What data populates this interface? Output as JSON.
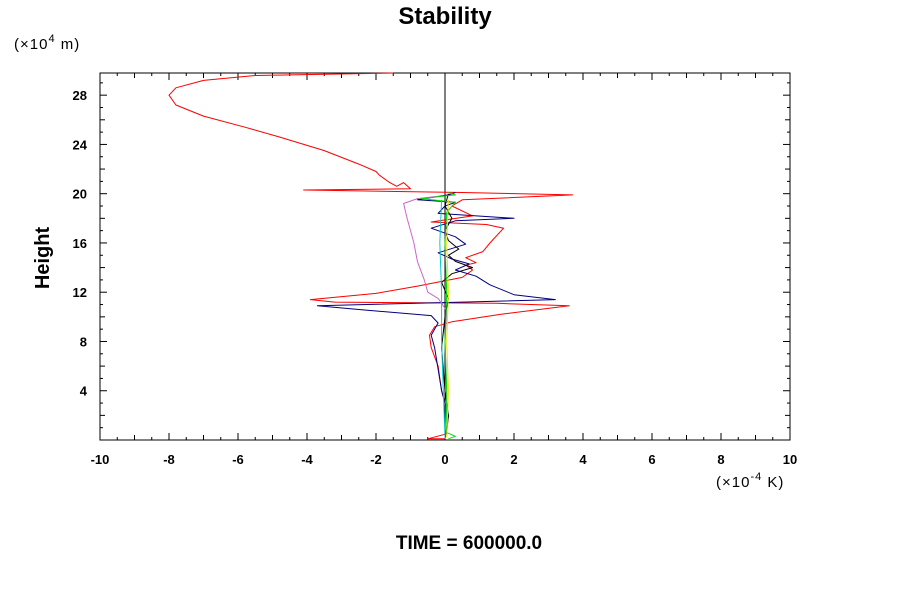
{
  "chart_data": {
    "type": "line",
    "title": "Stability",
    "xlabel": "",
    "ylabel": "Height",
    "x_unit_label": {
      "base": "(×10",
      "exp": "-4",
      "unit": " K)"
    },
    "y_unit_label": {
      "base": "(×10",
      "exp": "4",
      "unit": " m)"
    },
    "xlim": [
      -10,
      10
    ],
    "ylim": [
      0,
      29.8
    ],
    "x_ticks": [
      -10,
      -8,
      -6,
      -4,
      -2,
      0,
      2,
      4,
      6,
      8,
      10
    ],
    "x_tick_labels": [
      "-10",
      "-8",
      "-6",
      "-4",
      "-2",
      "0",
      "2",
      "4",
      "6",
      "8",
      "10"
    ],
    "y_ticks": [
      4,
      8,
      12,
      16,
      20,
      24,
      28
    ],
    "y_tick_labels": [
      "4",
      "8",
      "12",
      "16",
      "20",
      "24",
      "28"
    ],
    "grid": false,
    "footer": "TIME = 600000.0",
    "series": [
      {
        "color": "#ff0000",
        "points": [
          [
            0.0,
            0.1
          ],
          [
            -0.5,
            0.1
          ],
          [
            0.05,
            0.5
          ],
          [
            0.1,
            2.0
          ],
          [
            -0.1,
            4.0
          ],
          [
            -0.2,
            6.0
          ],
          [
            -0.4,
            7.5
          ],
          [
            -0.45,
            8.5
          ],
          [
            -0.3,
            9.2
          ],
          [
            0.2,
            9.6
          ],
          [
            1.6,
            10.2
          ],
          [
            3.6,
            10.9
          ],
          [
            1.5,
            11.1
          ],
          [
            -3.2,
            11.2
          ],
          [
            -3.9,
            11.4
          ],
          [
            -2.0,
            11.9
          ],
          [
            -0.8,
            12.5
          ],
          [
            0.5,
            13.2
          ],
          [
            0.8,
            13.8
          ],
          [
            0.6,
            14.2
          ],
          [
            0.9,
            14.4
          ],
          [
            0.6,
            14.8
          ],
          [
            1.1,
            15.3
          ],
          [
            1.3,
            16.0
          ],
          [
            1.7,
            17.2
          ],
          [
            1.2,
            17.5
          ],
          [
            -0.4,
            17.7
          ],
          [
            0.8,
            18.2
          ],
          [
            0.2,
            19.0
          ],
          [
            0.5,
            19.5
          ],
          [
            3.7,
            19.9
          ],
          [
            0.5,
            20.1
          ],
          [
            -4.1,
            20.3
          ],
          [
            -1.0,
            20.4
          ],
          [
            -1.2,
            20.9
          ],
          [
            -1.4,
            20.6
          ],
          [
            -1.6,
            20.9
          ],
          [
            -1.9,
            21.5
          ],
          [
            -2.0,
            21.8
          ],
          [
            -2.5,
            22.4
          ],
          [
            -3.5,
            23.5
          ],
          [
            -4.8,
            24.6
          ],
          [
            -5.8,
            25.4
          ],
          [
            -7.0,
            26.3
          ],
          [
            -7.8,
            27.2
          ],
          [
            -8.0,
            28.0
          ],
          [
            -7.8,
            28.6
          ],
          [
            -7.0,
            29.2
          ],
          [
            -5.5,
            29.6
          ],
          [
            -1.5,
            29.8
          ]
        ]
      },
      {
        "color": "#000080",
        "points": [
          [
            0.0,
            0.1
          ],
          [
            0.1,
            2.0
          ],
          [
            -0.1,
            4.0
          ],
          [
            -0.3,
            7.5
          ],
          [
            -0.4,
            8.5
          ],
          [
            -0.2,
            9.5
          ],
          [
            -0.4,
            10.1
          ],
          [
            -2.5,
            10.6
          ],
          [
            -3.7,
            10.9
          ],
          [
            0.5,
            11.2
          ],
          [
            3.2,
            11.4
          ],
          [
            2.0,
            11.8
          ],
          [
            1.3,
            12.6
          ],
          [
            0.9,
            13.3
          ],
          [
            0.3,
            13.8
          ],
          [
            0.7,
            14.3
          ],
          [
            0.2,
            14.7
          ],
          [
            -0.2,
            15.2
          ],
          [
            0.6,
            15.9
          ],
          [
            0.3,
            16.5
          ],
          [
            -0.4,
            17.2
          ],
          [
            0.3,
            17.8
          ],
          [
            2.0,
            18.0
          ],
          [
            -0.2,
            18.4
          ],
          [
            0.0,
            19.0
          ],
          [
            0.3,
            19.3
          ],
          [
            -0.8,
            19.5
          ],
          [
            0.1,
            19.9
          ],
          [
            0.3,
            20.1
          ]
        ]
      },
      {
        "color": "#000000",
        "points": [
          [
            0.0,
            0.1
          ],
          [
            0.1,
            2.0
          ],
          [
            0.0,
            4.0
          ],
          [
            -0.1,
            7.5
          ],
          [
            0.0,
            10.0
          ],
          [
            0.1,
            11.5
          ],
          [
            -0.1,
            12.8
          ],
          [
            0.2,
            13.5
          ],
          [
            0.8,
            14.0
          ],
          [
            0.3,
            14.5
          ],
          [
            0.1,
            15.0
          ],
          [
            0.4,
            15.5
          ],
          [
            0.1,
            16.2
          ],
          [
            0.0,
            17.0
          ],
          [
            0.2,
            18.0
          ],
          [
            0.0,
            19.0
          ],
          [
            0.1,
            20.0
          ]
        ]
      },
      {
        "color": "#cc66cc",
        "points": [
          [
            0.0,
            0.1
          ],
          [
            0.05,
            4.0
          ],
          [
            0.0,
            8.0
          ],
          [
            0.05,
            10.5
          ],
          [
            -0.2,
            11.5
          ],
          [
            -0.5,
            12.0
          ],
          [
            -0.6,
            13.0
          ],
          [
            -0.8,
            14.5
          ],
          [
            -0.9,
            16.0
          ],
          [
            -1.1,
            18.0
          ],
          [
            -1.2,
            19.2
          ],
          [
            -0.8,
            19.6
          ],
          [
            -0.2,
            19.8
          ]
        ]
      },
      {
        "color": "#00dd00",
        "points": [
          [
            0.1,
            0.1
          ],
          [
            0.3,
            0.3
          ],
          [
            0.05,
            0.6
          ],
          [
            0.05,
            4.0
          ],
          [
            0.0,
            8.0
          ],
          [
            0.05,
            12.0
          ],
          [
            0.0,
            16.0
          ],
          [
            0.05,
            18.5
          ],
          [
            0.3,
            19.3
          ],
          [
            -0.7,
            19.6
          ],
          [
            0.3,
            19.9
          ],
          [
            0.1,
            20.1
          ]
        ]
      },
      {
        "color": "#00cccc",
        "points": [
          [
            0.0,
            0.2
          ],
          [
            -0.05,
            4.0
          ],
          [
            -0.1,
            8.0
          ],
          [
            -0.1,
            12.0
          ],
          [
            -0.15,
            16.0
          ],
          [
            -0.1,
            19.5
          ]
        ]
      },
      {
        "color": "#e6e600",
        "points": [
          [
            0.05,
            0.2
          ],
          [
            0.1,
            4.0
          ],
          [
            0.05,
            8.0
          ],
          [
            0.1,
            12.0
          ],
          [
            0.05,
            16.0
          ],
          [
            0.1,
            19.5
          ]
        ]
      }
    ]
  }
}
